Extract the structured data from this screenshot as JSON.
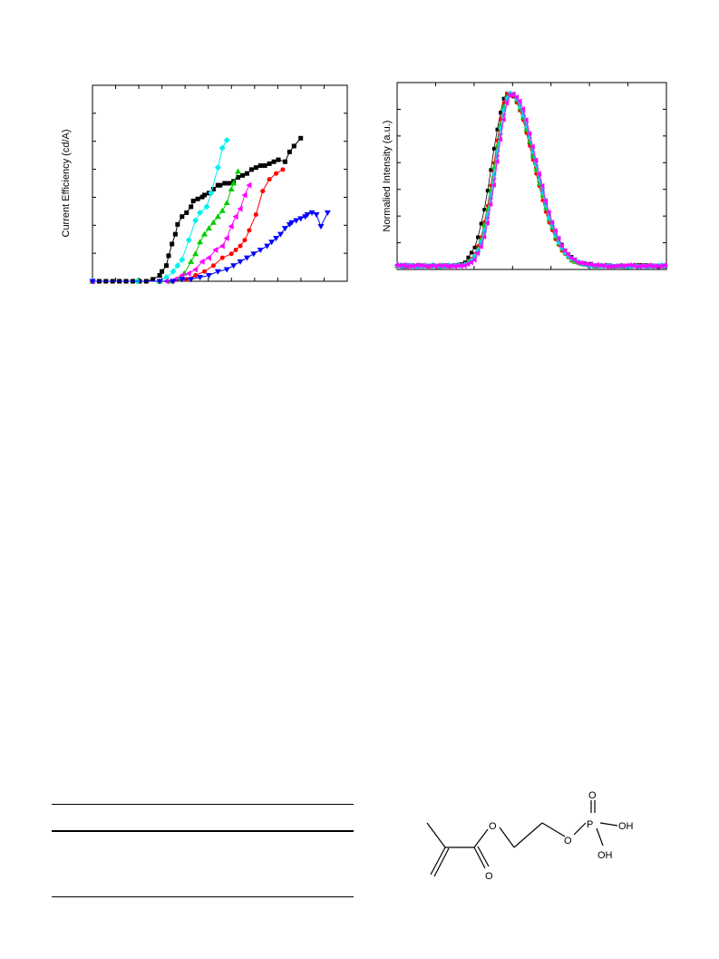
{
  "chart_data": [
    {
      "type": "line",
      "title": "",
      "xlabel": "",
      "ylabel": "Current Efficiency (cd/A)",
      "xlim": [
        0,
        1
      ],
      "ylim": [
        0,
        1
      ],
      "grid": false,
      "series": [
        {
          "color": "#000000",
          "marker": "square",
          "x": [
            0.0,
            0.03,
            0.06,
            0.09,
            0.12,
            0.15,
            0.18,
            0.21,
            0.24,
            0.27,
            0.3,
            0.31,
            0.33,
            0.34,
            0.355,
            0.37,
            0.38,
            0.4,
            0.42,
            0.44,
            0.45,
            0.47,
            0.49,
            0.5,
            0.52,
            0.54,
            0.56,
            0.57,
            0.59,
            0.61,
            0.63,
            0.65,
            0.67,
            0.69,
            0.71,
            0.73,
            0.75,
            0.77,
            0.79,
            0.81,
            0.83,
            0.86,
            0.88,
            0.9,
            0.93
          ],
          "y": [
            0.0,
            0.0,
            0.0,
            0.0,
            0.0,
            0.0,
            0.0,
            0.0,
            0.0,
            0.01,
            0.03,
            0.05,
            0.08,
            0.13,
            0.19,
            0.24,
            0.29,
            0.33,
            0.35,
            0.38,
            0.41,
            0.42,
            0.43,
            0.44,
            0.45,
            0.47,
            0.49,
            0.49,
            0.5,
            0.5,
            0.51,
            0.53,
            0.54,
            0.55,
            0.57,
            0.58,
            0.59,
            0.59,
            0.6,
            0.61,
            0.62,
            0.61,
            0.66,
            0.69,
            0.73
          ]
        },
        {
          "color": "#00f0f0",
          "marker": "diamond",
          "x": [
            0.0,
            0.2,
            0.3,
            0.33,
            0.36,
            0.38,
            0.4,
            0.43,
            0.46,
            0.48,
            0.51,
            0.53,
            0.56,
            0.58,
            0.6
          ],
          "y": [
            0.0,
            0.0,
            0.0,
            0.02,
            0.05,
            0.08,
            0.11,
            0.21,
            0.31,
            0.35,
            0.38,
            0.45,
            0.58,
            0.68,
            0.72
          ]
        },
        {
          "color": "#00cc00",
          "marker": "triangle-up",
          "x": [
            0.0,
            0.3,
            0.35,
            0.38,
            0.41,
            0.44,
            0.46,
            0.48,
            0.5,
            0.52,
            0.54,
            0.56,
            0.58,
            0.6,
            0.62,
            0.63,
            0.65
          ],
          "y": [
            0.0,
            0.0,
            0.0,
            0.01,
            0.04,
            0.1,
            0.14,
            0.2,
            0.24,
            0.27,
            0.3,
            0.33,
            0.36,
            0.4,
            0.47,
            0.5,
            0.56
          ]
        },
        {
          "color": "#ff00ff",
          "marker": "triangle-left",
          "x": [
            0.0,
            0.33,
            0.37,
            0.4,
            0.43,
            0.46,
            0.49,
            0.52,
            0.55,
            0.58,
            0.6,
            0.62,
            0.64,
            0.66,
            0.68,
            0.7
          ],
          "y": [
            0.0,
            0.0,
            0.01,
            0.03,
            0.04,
            0.06,
            0.1,
            0.12,
            0.16,
            0.18,
            0.22,
            0.28,
            0.33,
            0.37,
            0.44,
            0.49
          ]
        },
        {
          "color": "#ff0000",
          "marker": "circle",
          "x": [
            0.0,
            0.36,
            0.42,
            0.46,
            0.5,
            0.54,
            0.58,
            0.62,
            0.64,
            0.66,
            0.68,
            0.7,
            0.73,
            0.76,
            0.79,
            0.82,
            0.85
          ],
          "y": [
            0.0,
            0.0,
            0.01,
            0.03,
            0.05,
            0.08,
            0.12,
            0.14,
            0.16,
            0.18,
            0.21,
            0.26,
            0.34,
            0.46,
            0.52,
            0.55,
            0.57
          ]
        },
        {
          "color": "#0000ff",
          "marker": "triangle-down",
          "x": [
            0.0,
            0.3,
            0.36,
            0.4,
            0.44,
            0.48,
            0.52,
            0.56,
            0.6,
            0.63,
            0.66,
            0.69,
            0.72,
            0.75,
            0.78,
            0.8,
            0.82,
            0.84,
            0.86,
            0.88,
            0.89,
            0.91,
            0.93,
            0.95,
            0.96,
            0.98,
            1.0,
            1.02,
            1.05
          ],
          "y": [
            0.0,
            0.0,
            0.0,
            0.01,
            0.01,
            0.02,
            0.03,
            0.05,
            0.06,
            0.08,
            0.1,
            0.12,
            0.14,
            0.16,
            0.18,
            0.2,
            0.22,
            0.24,
            0.27,
            0.29,
            0.3,
            0.31,
            0.32,
            0.33,
            0.34,
            0.35,
            0.34,
            0.28,
            0.35
          ]
        }
      ]
    },
    {
      "type": "scatter",
      "title": "",
      "xlabel": "",
      "ylabel": "Normalied Intensity (a.u.)",
      "xlim": [
        0,
        1
      ],
      "ylim": [
        0,
        1.06
      ],
      "grid": false,
      "peak_center": 0.42,
      "baseline": 0.02,
      "series": [
        {
          "color": "#000000",
          "marker": "square"
        },
        {
          "color": "#ff0000",
          "marker": "circle"
        },
        {
          "color": "#00cc00",
          "marker": "triangle-up"
        },
        {
          "color": "#00e0e0",
          "marker": "diamond"
        },
        {
          "color": "#6080ff",
          "marker": "triangle-down"
        },
        {
          "color": "#ff00ff",
          "marker": "triangle-left"
        }
      ]
    }
  ],
  "table": {
    "rows": 0
  },
  "structure": {
    "atoms": {
      "o_ester": "O",
      "o_carbonyl": "O",
      "o_link": "O",
      "p": "P",
      "o_p_double": "O",
      "oh_right": "OH",
      "oh_bottom": "OH"
    }
  }
}
